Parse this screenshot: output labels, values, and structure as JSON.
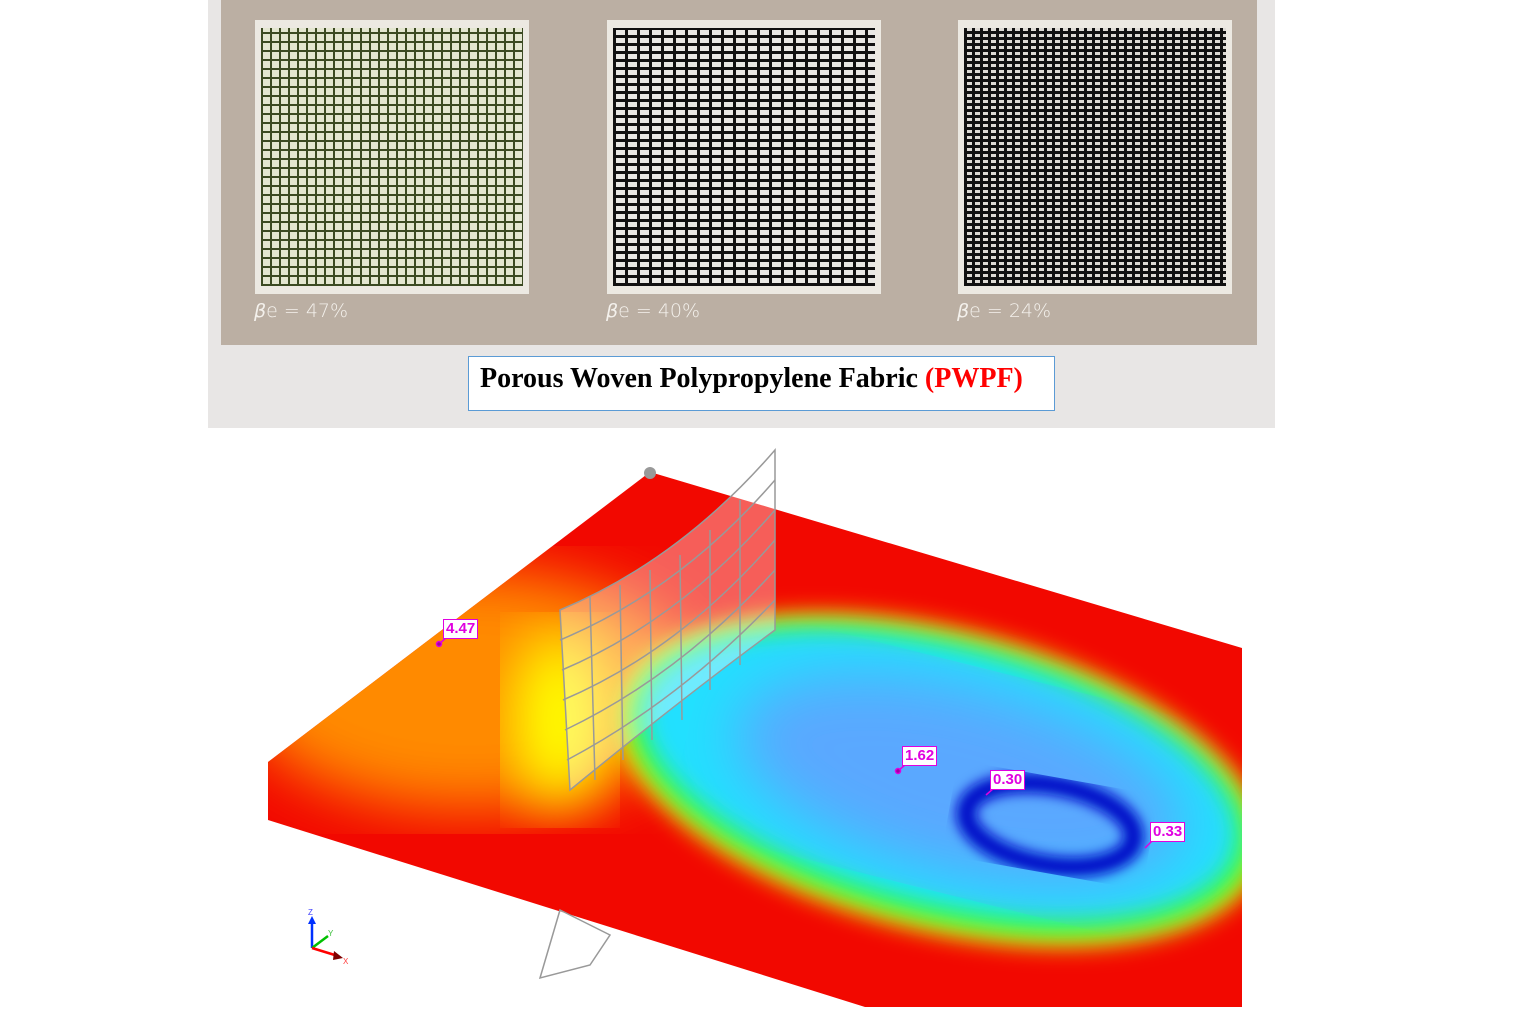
{
  "panels": [
    {
      "label_symbol": "β",
      "label_text": "e = 47%"
    },
    {
      "label_symbol": "β",
      "label_text": "e = 40%"
    },
    {
      "label_symbol": "β",
      "label_text": "e = 24%"
    }
  ],
  "title": {
    "main": "Porous Woven Polypropylene Fabric",
    "abbrev": "(PWPF)",
    "abbrev_color": "#ff0000"
  },
  "simulation": {
    "probes": [
      "4.47",
      "1.62",
      "0.30",
      "0.33"
    ],
    "probe_color": "#e000e0",
    "axes": {
      "z": "Z",
      "y": "Y",
      "x": "X"
    },
    "colormap": [
      "#0000c8",
      "#00e0ff",
      "#00ff00",
      "#ffff00",
      "#ff8000",
      "#ff0000"
    ]
  }
}
